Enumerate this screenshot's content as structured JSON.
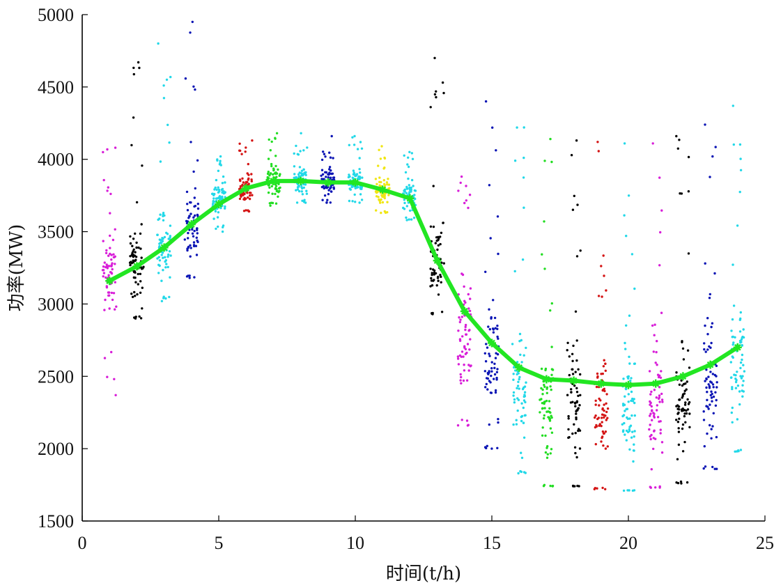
{
  "chart_data": {
    "type": "scatter",
    "title": "",
    "xlabel": "时间(t/h)",
    "ylabel": "功率(MW)",
    "xlim": [
      0,
      25
    ],
    "ylim": [
      1500,
      5000
    ],
    "x_ticks": [
      "0",
      "5",
      "10",
      "15",
      "20",
      "25"
    ],
    "y_ticks": [
      "1500",
      "2000",
      "2500",
      "3000",
      "3500",
      "4000",
      "4500",
      "5000"
    ],
    "grid": false,
    "legend": "none",
    "hour_colors": [
      "#d81ed8",
      "#000000",
      "#22d8e8",
      "#0a14b4",
      "#22d8e8",
      "#d41414",
      "#22dd22",
      "#22d8e8",
      "#0a14b4",
      "#22d8e8",
      "#f0e614",
      "#22d8e8",
      "#000000",
      "#d81ed8",
      "#0a14b4",
      "#22d8e8",
      "#22dd22",
      "#000000",
      "#d41414",
      "#22d8e8",
      "#d81ed8",
      "#000000",
      "#0a14b4",
      "#22d8e8"
    ],
    "scatter_bands": [
      {
        "hour": 1,
        "main_low": 2800,
        "main_high": 3600,
        "min": 2370,
        "max": 4080
      },
      {
        "hour": 2,
        "main_low": 2920,
        "main_high": 3650,
        "min": 2900,
        "max": 4670
      },
      {
        "hour": 3,
        "main_low": 3050,
        "main_high": 3750,
        "min": 3020,
        "max": 4800
      },
      {
        "hour": 4,
        "main_low": 3200,
        "main_high": 3900,
        "min": 3180,
        "max": 4950
      },
      {
        "hour": 5,
        "main_low": 3550,
        "main_high": 3900,
        "min": 3500,
        "max": 4020
      },
      {
        "hour": 6,
        "main_low": 3650,
        "main_high": 3950,
        "min": 3640,
        "max": 4130
      },
      {
        "hour": 7,
        "main_low": 3700,
        "main_high": 4000,
        "min": 3680,
        "max": 4180
      },
      {
        "hour": 8,
        "main_low": 3720,
        "main_high": 4000,
        "min": 3700,
        "max": 4180
      },
      {
        "hour": 9,
        "main_low": 3720,
        "main_high": 3980,
        "min": 3700,
        "max": 4160
      },
      {
        "hour": 10,
        "main_low": 3720,
        "main_high": 3980,
        "min": 3700,
        "max": 4160
      },
      {
        "hour": 11,
        "main_low": 3650,
        "main_high": 3920,
        "min": 3630,
        "max": 4090
      },
      {
        "hour": 12,
        "main_low": 3600,
        "main_high": 3900,
        "min": 3580,
        "max": 4050
      },
      {
        "hour": 13,
        "main_low": 2950,
        "main_high": 3700,
        "min": 2930,
        "max": 4700
      },
      {
        "hour": 14,
        "main_low": 2200,
        "main_high": 3300,
        "min": 2160,
        "max": 3880
      },
      {
        "hour": 15,
        "main_low": 2050,
        "main_high": 3200,
        "min": 2000,
        "max": 4400
      },
      {
        "hour": 16,
        "main_low": 1850,
        "main_high": 3000,
        "min": 1830,
        "max": 4220
      },
      {
        "hour": 17,
        "main_low": 1750,
        "main_high": 2900,
        "min": 1740,
        "max": 4140
      },
      {
        "hour": 18,
        "main_low": 1750,
        "main_high": 2900,
        "min": 1740,
        "max": 4130
      },
      {
        "hour": 19,
        "main_low": 1750,
        "main_high": 2850,
        "min": 1720,
        "max": 4120
      },
      {
        "hour": 20,
        "main_low": 1720,
        "main_high": 2800,
        "min": 1710,
        "max": 4110
      },
      {
        "hour": 21,
        "main_low": 1740,
        "main_high": 2850,
        "min": 1730,
        "max": 4110
      },
      {
        "hour": 22,
        "main_low": 1780,
        "main_high": 2900,
        "min": 1760,
        "max": 4160
      },
      {
        "hour": 23,
        "main_low": 1880,
        "main_high": 3000,
        "min": 1860,
        "max": 4240
      },
      {
        "hour": 24,
        "main_low": 2000,
        "main_high": 3100,
        "min": 1980,
        "max": 4370
      }
    ],
    "series": [
      {
        "color": "#22e622",
        "x": [
          1,
          2,
          3,
          4,
          5,
          6,
          7,
          8,
          9,
          10,
          11,
          12,
          13,
          14,
          15,
          16,
          17,
          18,
          19,
          20,
          21,
          22,
          23,
          24
        ],
        "y": [
          3160,
          3260,
          3390,
          3550,
          3690,
          3800,
          3850,
          3850,
          3840,
          3840,
          3790,
          3730,
          3300,
          2950,
          2730,
          2560,
          2480,
          2470,
          2450,
          2440,
          2450,
          2500,
          2580,
          2700
        ]
      }
    ]
  }
}
